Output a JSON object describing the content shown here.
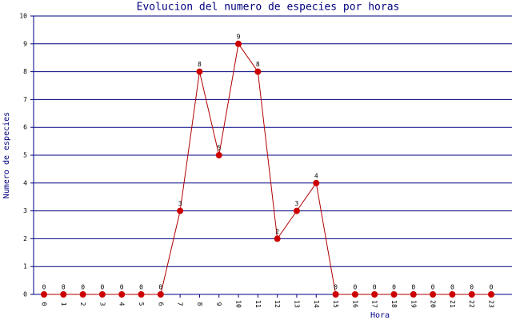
{
  "chart_data": {
    "type": "line",
    "title": "Evolucion del numero de especies por horas",
    "x_label": "Hora",
    "y_label": "Numero de especies",
    "categories": [
      "0",
      "1",
      "2",
      "3",
      "4",
      "5",
      "6",
      "7",
      "8",
      "9",
      "10",
      "11",
      "12",
      "13",
      "14",
      "15",
      "16",
      "17",
      "18",
      "19",
      "20",
      "21",
      "22",
      "23"
    ],
    "series": [
      {
        "name": "Numero de especies",
        "color": "#cc0000",
        "values": [
          0,
          0,
          0,
          0,
          0,
          0,
          0,
          3,
          8,
          5,
          9,
          8,
          2,
          3,
          4,
          0,
          0,
          0,
          0,
          0,
          0,
          0,
          0,
          0
        ]
      }
    ],
    "ylim": [
      0,
      10
    ],
    "yticks": [
      0,
      1,
      2,
      3,
      4,
      5,
      6,
      7,
      8,
      9,
      10
    ],
    "grid": true,
    "data_labels": true
  }
}
